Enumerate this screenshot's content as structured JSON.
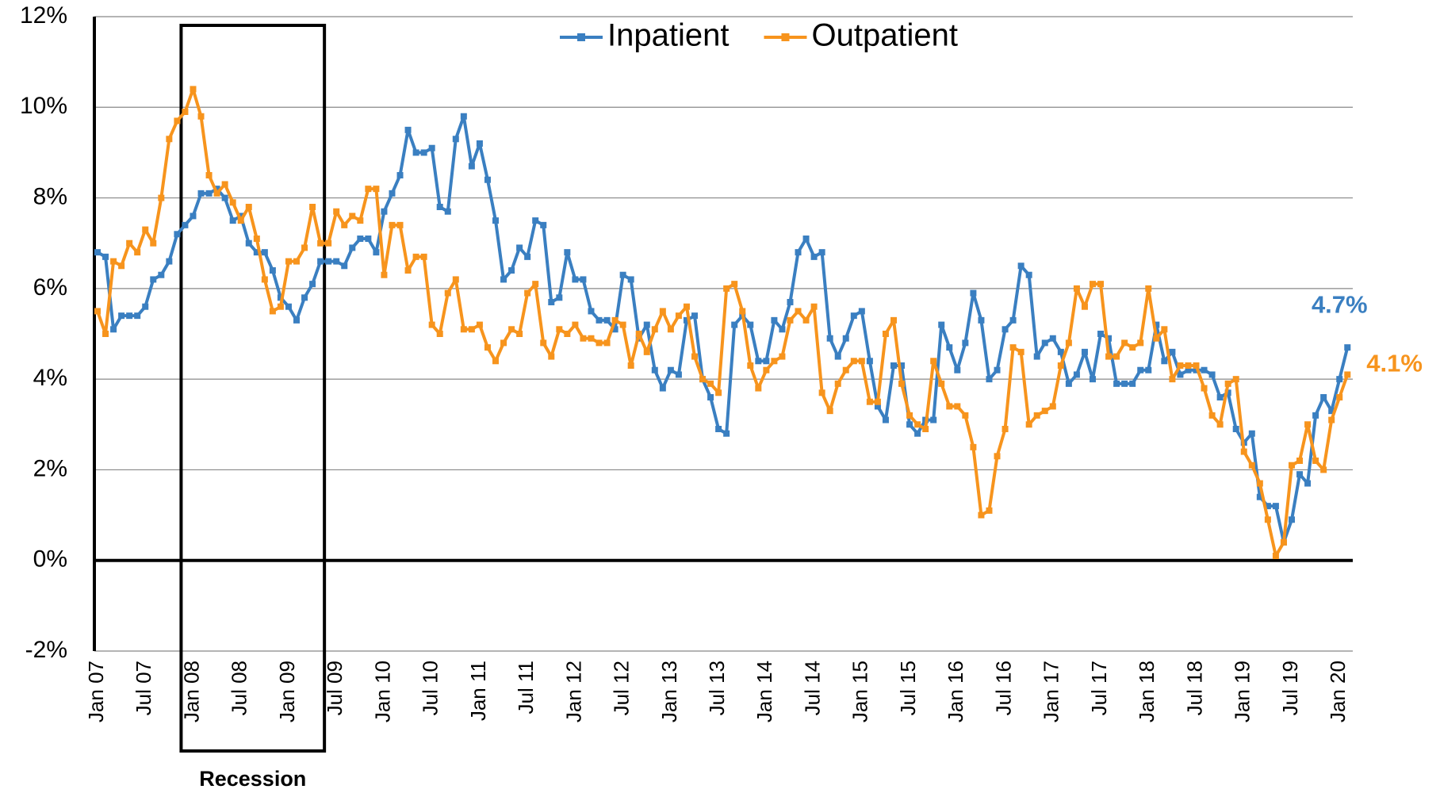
{
  "chart_data": {
    "type": "line",
    "categories": [
      "Jan 07",
      null,
      null,
      null,
      null,
      null,
      "Jul 07",
      null,
      null,
      null,
      null,
      null,
      "Jan 08",
      null,
      null,
      null,
      null,
      null,
      "Jul 08",
      null,
      null,
      null,
      null,
      null,
      "Jan 09",
      null,
      null,
      null,
      null,
      null,
      "Jul 09",
      null,
      null,
      null,
      null,
      null,
      "Jan 10",
      null,
      null,
      null,
      null,
      null,
      "Jul 10",
      null,
      null,
      null,
      null,
      null,
      "Jan 11",
      null,
      null,
      null,
      null,
      null,
      "Jul 11",
      null,
      null,
      null,
      null,
      null,
      "Jan 12",
      null,
      null,
      null,
      null,
      null,
      "Jul 12",
      null,
      null,
      null,
      null,
      null,
      "Jan 13",
      null,
      null,
      null,
      null,
      null,
      "Jul 13",
      null,
      null,
      null,
      null,
      null,
      "Jan 14",
      null,
      null,
      null,
      null,
      null,
      "Jul 14",
      null,
      null,
      null,
      null,
      null,
      "Jan 15",
      null,
      null,
      null,
      null,
      null,
      "Jul 15",
      null,
      null,
      null,
      null,
      null,
      "Jan 16",
      null,
      null,
      null,
      null,
      null,
      "Jul 16",
      null,
      null,
      null,
      null,
      null,
      "Jan 17",
      null,
      null,
      null,
      null,
      null,
      "Jul 17",
      null,
      null,
      null,
      null,
      null,
      "Jan 18",
      null,
      null,
      null,
      null,
      null,
      "Jul 18",
      null,
      null,
      null,
      null,
      null,
      "Jan 19",
      null,
      null,
      null,
      null,
      null,
      "Jul 19",
      null,
      null,
      null,
      null,
      null,
      "Jan 20",
      null
    ],
    "series": [
      {
        "name": "Inpatient",
        "color": "#3a7fc1",
        "last_label": "4.7%",
        "values": [
          6.8,
          6.7,
          5.1,
          5.4,
          5.4,
          5.4,
          5.6,
          6.2,
          6.3,
          6.6,
          7.2,
          7.4,
          7.6,
          8.1,
          8.1,
          8.2,
          8.0,
          7.5,
          7.6,
          7.0,
          6.8,
          6.8,
          6.4,
          5.8,
          5.6,
          5.3,
          5.8,
          6.1,
          6.6,
          6.6,
          6.6,
          6.5,
          6.9,
          7.1,
          7.1,
          6.8,
          7.7,
          8.1,
          8.5,
          9.5,
          9.0,
          9.0,
          9.1,
          7.8,
          7.7,
          9.3,
          9.8,
          8.7,
          9.2,
          8.4,
          7.5,
          6.2,
          6.4,
          6.9,
          6.7,
          7.5,
          7.4,
          5.7,
          5.8,
          6.8,
          6.2,
          6.2,
          5.5,
          5.3,
          5.3,
          5.1,
          6.3,
          6.2,
          4.9,
          5.2,
          4.2,
          3.8,
          4.2,
          4.1,
          5.3,
          5.4,
          4.0,
          3.6,
          2.9,
          2.8,
          5.2,
          5.4,
          5.2,
          4.4,
          4.4,
          5.3,
          5.1,
          5.7,
          6.8,
          7.1,
          6.7,
          6.8,
          4.9,
          4.5,
          4.9,
          5.4,
          5.5,
          4.4,
          3.4,
          3.1,
          4.3,
          4.3,
          3.0,
          2.8,
          3.1,
          3.1,
          5.2,
          4.7,
          4.2,
          4.8,
          5.9,
          5.3,
          4.0,
          4.2,
          5.1,
          5.3,
          6.5,
          6.3,
          4.5,
          4.8,
          4.9,
          4.6,
          3.9,
          4.1,
          4.6,
          4.0,
          5.0,
          4.9,
          3.9,
          3.9,
          3.9,
          4.2,
          4.2,
          5.2,
          4.4,
          4.6,
          4.1,
          4.2,
          4.2,
          4.2,
          4.1,
          3.6,
          3.7,
          2.9,
          2.6,
          2.8,
          1.4,
          1.2,
          1.2,
          0.4,
          0.9,
          1.9,
          1.7,
          3.2,
          3.6,
          3.3,
          4.0,
          4.7
        ]
      },
      {
        "name": "Outpatient",
        "color": "#f7941d",
        "last_label": "4.1%",
        "values": [
          5.5,
          5.0,
          6.6,
          6.5,
          7.0,
          6.8,
          7.3,
          7.0,
          8.0,
          9.3,
          9.7,
          9.9,
          10.4,
          9.8,
          8.5,
          8.1,
          8.3,
          7.9,
          7.5,
          7.8,
          7.1,
          6.2,
          5.5,
          5.6,
          6.6,
          6.6,
          6.9,
          7.8,
          7.0,
          7.0,
          7.7,
          7.4,
          7.6,
          7.5,
          8.2,
          8.2,
          6.3,
          7.4,
          7.4,
          6.4,
          6.7,
          6.7,
          5.2,
          5.0,
          5.9,
          6.2,
          5.1,
          5.1,
          5.2,
          4.7,
          4.4,
          4.8,
          5.1,
          5.0,
          5.9,
          6.1,
          4.8,
          4.5,
          5.1,
          5.0,
          5.2,
          4.9,
          4.9,
          4.8,
          4.8,
          5.3,
          5.2,
          4.3,
          5.0,
          4.6,
          5.1,
          5.5,
          5.1,
          5.4,
          5.6,
          4.5,
          4.0,
          3.9,
          3.7,
          6.0,
          6.1,
          5.5,
          4.3,
          3.8,
          4.2,
          4.4,
          4.5,
          5.3,
          5.5,
          5.3,
          5.6,
          3.7,
          3.3,
          3.9,
          4.2,
          4.4,
          4.4,
          3.5,
          3.5,
          5.0,
          5.3,
          3.9,
          3.2,
          3.0,
          2.9,
          4.4,
          3.9,
          3.4,
          3.4,
          3.2,
          2.5,
          1.0,
          1.1,
          2.3,
          2.9,
          4.7,
          4.6,
          3.0,
          3.2,
          3.3,
          3.4,
          4.3,
          4.8,
          6.0,
          5.6,
          6.1,
          6.1,
          4.5,
          4.5,
          4.8,
          4.7,
          4.8,
          6.0,
          4.9,
          5.1,
          4.0,
          4.3,
          4.3,
          4.3,
          3.8,
          3.2,
          3.0,
          3.9,
          4.0,
          2.4,
          2.1,
          1.7,
          0.9,
          0.1,
          0.4,
          2.1,
          2.2,
          3.0,
          2.2,
          2.0,
          3.1,
          3.6,
          4.1
        ]
      }
    ],
    "ylim": [
      -2,
      12
    ],
    "yticks": [
      {
        "value": -2,
        "label": "-2%"
      },
      {
        "value": 0,
        "label": "0%"
      },
      {
        "value": 2,
        "label": "2%"
      },
      {
        "value": 4,
        "label": "4%"
      },
      {
        "value": 6,
        "label": "6%"
      },
      {
        "value": 8,
        "label": "8%"
      },
      {
        "value": 10,
        "label": "10%"
      },
      {
        "value": 12,
        "label": "12%"
      }
    ],
    "grid": true,
    "legend": "top",
    "recession": {
      "label": "Recession",
      "start": 10.5,
      "end": 28.5
    }
  }
}
